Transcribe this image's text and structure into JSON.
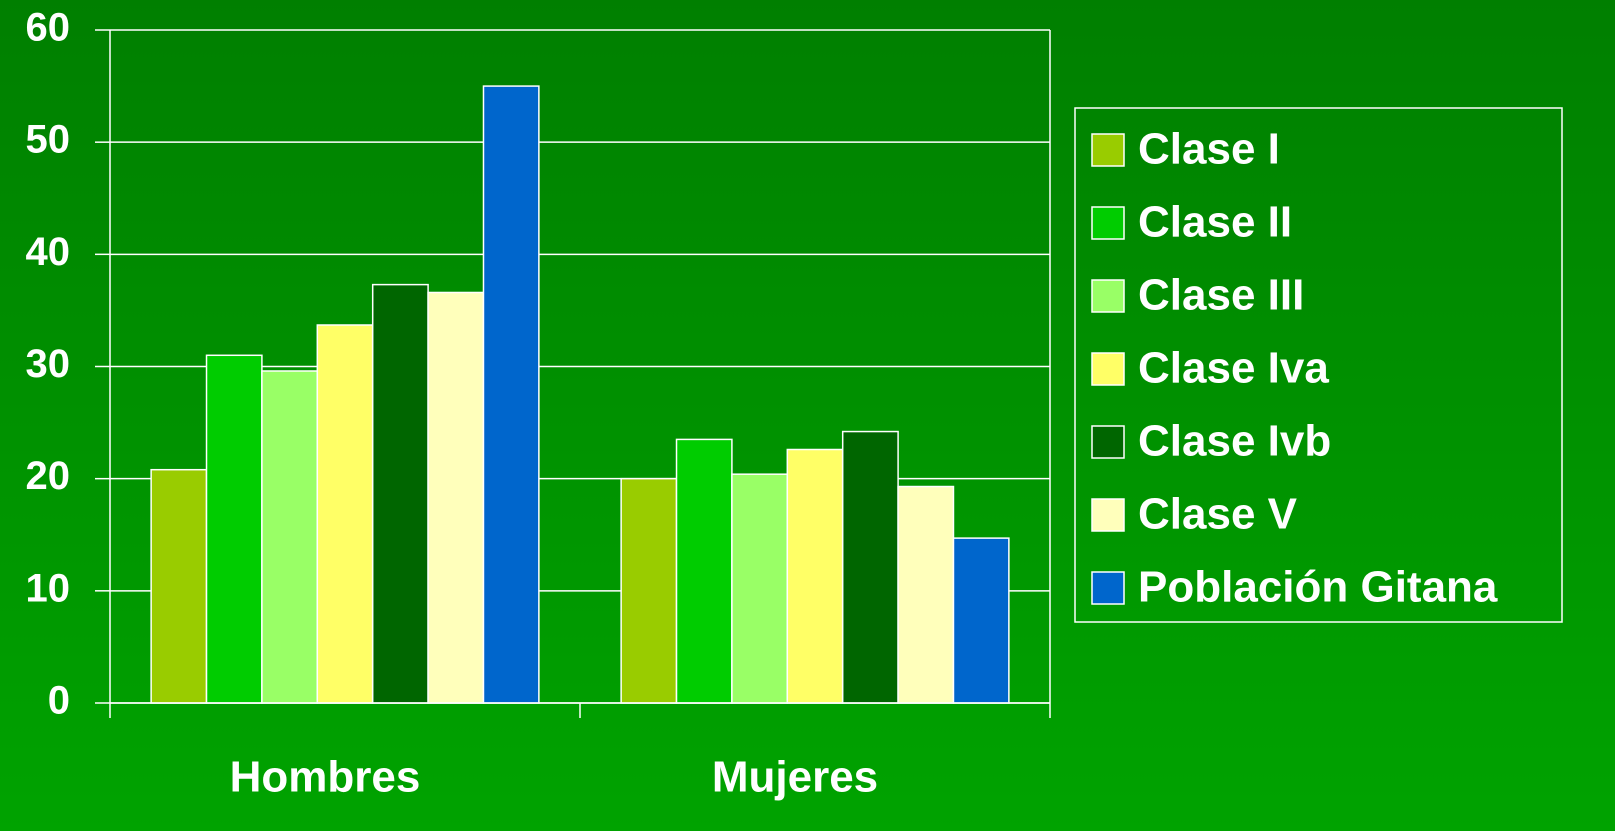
{
  "chart_data": {
    "type": "bar",
    "categories": [
      "Hombres",
      "Mujeres"
    ],
    "series": [
      {
        "name": "Clase I",
        "color": "#99cc00",
        "values": [
          20.8,
          20.0
        ]
      },
      {
        "name": "Clase II",
        "color": "#00cc00",
        "values": [
          31.0,
          23.5
        ]
      },
      {
        "name": "Clase III",
        "color": "#99ff66",
        "values": [
          29.6,
          20.4
        ]
      },
      {
        "name": "Clase Iva",
        "color": "#ffff66",
        "values": [
          33.7,
          22.6
        ]
      },
      {
        "name": "Clase Ivb",
        "color": "#006600",
        "values": [
          37.3,
          24.2
        ]
      },
      {
        "name": "Clase V",
        "color": "#ffffbb",
        "values": [
          36.6,
          19.3
        ]
      },
      {
        "name": "Población Gitana",
        "color": "#0066cc",
        "values": [
          55.0,
          14.7
        ]
      }
    ],
    "ylim": [
      0,
      60
    ],
    "yticks": [
      0,
      10,
      20,
      30,
      40,
      50,
      60
    ],
    "grid": true,
    "legend": "right"
  }
}
